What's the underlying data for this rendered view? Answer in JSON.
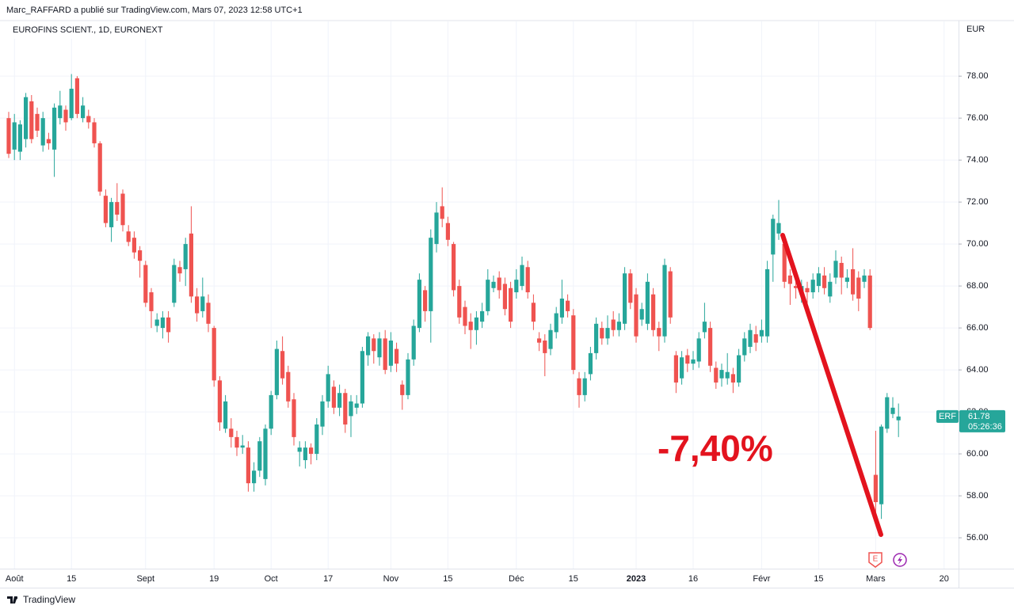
{
  "header": {
    "attribution": "Marc_RAFFARD a publié sur TradingView.com, Mars 07, 2023 12:58 UTC+1",
    "brand": "TradingView"
  },
  "chart_data": {
    "type": "candlestick",
    "title": "EUROFINS SCIENT., 1D, EURONEXT",
    "y_axis_label": "EUR",
    "symbol": "ERF",
    "countdown": "05:26:36",
    "annotation": "-7,40%",
    "up_color": "#26a69a",
    "down_color": "#ef5350",
    "grid": true,
    "ylim": [
      54.53,
      80.61
    ],
    "yticks": [
      {
        "value": 56,
        "label": "56.00"
      },
      {
        "value": 58,
        "label": "58.00"
      },
      {
        "value": 60,
        "label": "60.00"
      },
      {
        "value": 62,
        "label": "62.00"
      },
      {
        "value": 64,
        "label": "64.00"
      },
      {
        "value": 66,
        "label": "66.00"
      },
      {
        "value": 68,
        "label": "68.00"
      },
      {
        "value": 70,
        "label": "70.00"
      },
      {
        "value": 72,
        "label": "72.00"
      },
      {
        "value": 74,
        "label": "74.00"
      },
      {
        "value": 76,
        "label": "76.00"
      },
      {
        "value": 78,
        "label": "78.00"
      }
    ],
    "categories": [
      null,
      "Août",
      null,
      null,
      null,
      null,
      null,
      null,
      null,
      null,
      null,
      "15",
      null,
      null,
      null,
      null,
      null,
      null,
      null,
      null,
      null,
      null,
      null,
      null,
      "Sept",
      null,
      null,
      null,
      null,
      null,
      null,
      null,
      null,
      null,
      null,
      null,
      "19",
      null,
      null,
      null,
      null,
      null,
      null,
      null,
      null,
      null,
      "Oct",
      null,
      null,
      null,
      null,
      null,
      null,
      null,
      null,
      null,
      "17",
      null,
      null,
      null,
      null,
      null,
      null,
      null,
      null,
      null,
      null,
      "Nov",
      null,
      null,
      null,
      null,
      null,
      null,
      null,
      null,
      null,
      "15",
      null,
      null,
      null,
      null,
      null,
      null,
      null,
      null,
      null,
      null,
      null,
      "Déc",
      null,
      null,
      null,
      null,
      null,
      null,
      null,
      null,
      null,
      "15",
      null,
      null,
      null,
      null,
      null,
      null,
      null,
      null,
      null,
      null,
      "2023",
      null,
      null,
      null,
      null,
      null,
      null,
      null,
      null,
      null,
      "16",
      null,
      null,
      null,
      null,
      null,
      null,
      null,
      null,
      null,
      null,
      null,
      "Févr",
      null,
      null,
      null,
      null,
      null,
      null,
      null,
      null,
      null,
      "15",
      null,
      null,
      null,
      null,
      null,
      null,
      null,
      null,
      null,
      "Mars",
      null,
      null,
      null,
      null,
      null,
      null,
      null,
      null,
      null,
      null,
      null,
      "20",
      null,
      null
    ],
    "open": [
      76.0,
      74.5,
      74.4,
      75.0,
      76.8,
      76.2,
      74.7,
      75.0,
      74.5,
      76.0,
      76.4,
      76.0,
      77.9,
      76.0,
      76.1,
      75.8,
      74.8,
      72.3,
      70.8,
      72.0,
      72.4,
      70.6,
      70.3,
      69.7,
      69.0,
      67.7,
      66.1,
      66.0,
      66.5,
      67.2,
      68.9,
      68.8,
      70.5,
      67.5,
      66.8,
      67.2,
      66.0,
      63.5,
      61.2,
      61.2,
      60.8,
      60.3,
      60.3,
      58.6,
      59.2,
      58.8,
      61.2,
      62.8,
      64.9,
      63.9,
      62.6,
      60.1,
      59.7,
      60.3,
      60.0,
      61.3,
      62.5,
      63.2,
      62.2,
      62.9,
      61.8,
      62.2,
      62.4,
      64.7,
      65.5,
      64.6,
      65.5,
      64.2,
      65.0,
      63.3,
      62.8,
      64.5,
      66.0,
      67.8,
      66.8,
      70.0,
      71.8,
      71.0,
      70.0,
      68.0,
      67.0,
      66.3,
      65.9,
      66.3,
      66.8,
      67.9,
      68.4,
      68.1,
      67.9,
      67.7,
      68.0,
      68.9,
      67.2,
      65.5,
      65.4,
      65.0,
      65.8,
      66.5,
      67.3,
      66.6,
      63.6,
      62.8,
      63.8,
      64.8,
      66.0,
      65.5,
      66.4,
      65.9,
      66.2,
      68.6,
      67.6,
      66.4,
      66.2,
      67.6,
      66.0,
      65.6,
      68.7,
      64.7,
      63.6,
      64.7,
      64.3,
      64.4,
      65.8,
      66.0,
      64.1,
      63.6,
      63.6,
      63.8,
      63.4,
      64.7,
      65.1,
      65.7,
      65.6,
      65.6,
      69.5,
      70.5,
      70.0,
      68.5,
      68.0,
      67.6,
      67.9,
      67.7,
      68.0,
      68.5,
      67.5,
      68.4,
      69.1,
      68.2,
      68.8,
      68.4,
      68.2,
      68.5,
      59.0,
      57.6,
      61.2,
      61.9,
      61.6,
      null,
      null,
      null,
      null,
      null,
      null,
      null,
      null,
      null,
      null
    ],
    "high": [
      76.3,
      76.2,
      75.9,
      77.2,
      77.1,
      76.5,
      76.3,
      75.3,
      76.7,
      77.3,
      76.6,
      78.1,
      78.0,
      77.0,
      76.4,
      76.0,
      74.9,
      72.6,
      72.2,
      72.9,
      72.6,
      70.9,
      70.6,
      69.9,
      69.2,
      67.9,
      66.7,
      66.8,
      66.8,
      69.3,
      69.2,
      70.3,
      71.8,
      67.9,
      68.4,
      67.6,
      66.1,
      63.7,
      62.8,
      61.7,
      61.1,
      60.9,
      60.6,
      59.6,
      60.8,
      61.4,
      63.0,
      65.4,
      65.6,
      64.2,
      62.9,
      60.6,
      60.6,
      60.5,
      61.7,
      62.8,
      64.2,
      63.5,
      63.3,
      63.1,
      62.8,
      62.8,
      65.1,
      65.8,
      65.7,
      65.8,
      65.9,
      65.8,
      65.3,
      63.5,
      64.8,
      66.4,
      68.6,
      68.0,
      70.7,
      72.0,
      72.7,
      71.3,
      70.1,
      68.3,
      67.3,
      66.7,
      66.8,
      67.2,
      68.8,
      68.5,
      68.7,
      68.4,
      68.2,
      68.8,
      69.4,
      69.2,
      67.6,
      65.8,
      65.7,
      66.2,
      67.0,
      68.3,
      67.6,
      66.9,
      63.9,
      63.9,
      65.1,
      66.5,
      66.3,
      66.6,
      66.8,
      66.7,
      68.9,
      68.8,
      67.9,
      67.2,
      68.6,
      67.9,
      66.3,
      69.3,
      68.9,
      64.9,
      64.9,
      65.0,
      64.9,
      65.8,
      67.2,
      66.3,
      64.4,
      64.3,
      64.8,
      64.1,
      65.0,
      65.8,
      66.2,
      66.1,
      66.4,
      69.2,
      71.4,
      72.1,
      70.3,
      68.8,
      68.3,
      68.3,
      68.2,
      68.6,
      68.9,
      68.9,
      68.6,
      69.7,
      69.4,
      68.8,
      69.8,
      68.7,
      68.8,
      68.8,
      61.1,
      61.4,
      62.9,
      62.7,
      62.4,
      null,
      null,
      null,
      null,
      null,
      null,
      null,
      null,
      null,
      null
    ],
    "low": [
      74.1,
      74.0,
      74.0,
      74.6,
      74.8,
      75.1,
      74.4,
      74.5,
      73.2,
      75.7,
      75.4,
      75.9,
      76.0,
      75.8,
      75.5,
      74.6,
      72.3,
      70.8,
      70.1,
      71.1,
      70.6,
      69.9,
      69.3,
      68.4,
      67.0,
      66.0,
      65.8,
      65.5,
      65.3,
      67.0,
      68.2,
      68.0,
      67.2,
      66.3,
      66.5,
      65.8,
      63.2,
      61.1,
      61.0,
      60.3,
      59.9,
      60.0,
      58.2,
      58.2,
      58.9,
      58.5,
      60.9,
      62.6,
      63.3,
      62.2,
      60.4,
      59.4,
      59.3,
      59.5,
      59.7,
      60.9,
      62.2,
      61.9,
      61.8,
      61.0,
      60.8,
      61.9,
      62.2,
      64.2,
      64.3,
      64.2,
      63.8,
      63.9,
      63.9,
      62.1,
      62.6,
      64.2,
      65.8,
      66.3,
      65.3,
      69.6,
      70.8,
      69.9,
      67.5,
      66.2,
      65.7,
      65.0,
      65.2,
      66.0,
      66.6,
      67.7,
      67.4,
      66.6,
      66.0,
      67.4,
      67.8,
      67.4,
      65.9,
      64.9,
      63.7,
      64.7,
      65.5,
      66.2,
      66.5,
      63.8,
      62.2,
      62.5,
      63.5,
      64.5,
      65.2,
      65.2,
      65.6,
      65.6,
      65.9,
      66.9,
      65.3,
      66.1,
      65.9,
      65.6,
      64.9,
      65.3,
      66.2,
      62.9,
      63.3,
      63.9,
      64.0,
      64.1,
      65.5,
      63.9,
      63.1,
      63.2,
      63.3,
      62.9,
      63.2,
      64.4,
      64.8,
      64.9,
      65.3,
      65.3,
      68.2,
      70.2,
      67.9,
      67.1,
      67.4,
      67.2,
      66.6,
      67.4,
      67.7,
      67.6,
      67.2,
      68.1,
      67.6,
      67.9,
      67.3,
      66.8,
      67.9,
      65.9,
      56.8,
      56.9,
      61.0,
      61.7,
      60.8,
      null,
      null,
      null,
      null,
      null,
      null,
      null,
      null,
      null,
      null
    ],
    "close": [
      74.3,
      75.8,
      75.7,
      77.0,
      75.0,
      75.4,
      76.0,
      74.8,
      76.5,
      76.6,
      75.8,
      77.4,
      76.2,
      76.6,
      75.8,
      74.8,
      72.5,
      71.0,
      72.0,
      71.4,
      70.9,
      70.1,
      69.6,
      69.2,
      67.2,
      66.8,
      66.4,
      66.5,
      65.8,
      69.0,
      68.6,
      70.0,
      67.5,
      66.7,
      67.5,
      66.2,
      63.5,
      61.5,
      62.5,
      60.8,
      60.3,
      60.4,
      58.6,
      59.2,
      60.6,
      61.2,
      62.8,
      65.0,
      63.6,
      62.5,
      60.8,
      60.3,
      60.3,
      60.0,
      61.4,
      62.5,
      63.8,
      62.2,
      62.9,
      61.4,
      62.5,
      62.4,
      64.9,
      65.6,
      64.9,
      65.5,
      64.0,
      65.4,
      64.3,
      62.8,
      64.5,
      66.1,
      68.3,
      66.8,
      70.3,
      71.5,
      71.2,
      70.2,
      67.8,
      66.5,
      66.1,
      65.9,
      66.5,
      66.8,
      68.3,
      68.2,
      67.8,
      66.9,
      66.3,
      68.3,
      69.0,
      67.7,
      66.3,
      65.3,
      64.8,
      65.9,
      66.7,
      67.4,
      66.8,
      64.0,
      62.8,
      63.6,
      64.8,
      66.2,
      65.5,
      66.0,
      65.9,
      66.3,
      68.6,
      67.2,
      65.6,
      66.9,
      68.2,
      65.9,
      65.6,
      69.0,
      66.5,
      63.4,
      64.6,
      64.3,
      64.5,
      65.5,
      66.3,
      64.2,
      63.4,
      64.0,
      63.9,
      63.4,
      64.7,
      65.5,
      65.9,
      65.3,
      65.9,
      68.8,
      71.2,
      71.0,
      68.2,
      68.1,
      67.9,
      68.0,
      67.7,
      68.3,
      68.6,
      67.9,
      68.2,
      69.2,
      68.4,
      68.4,
      67.6,
      67.4,
      68.5,
      66.0,
      57.7,
      61.3,
      62.7,
      62.2,
      61.78,
      null,
      null,
      null,
      null,
      null,
      null,
      null,
      null,
      null,
      null
    ]
  }
}
